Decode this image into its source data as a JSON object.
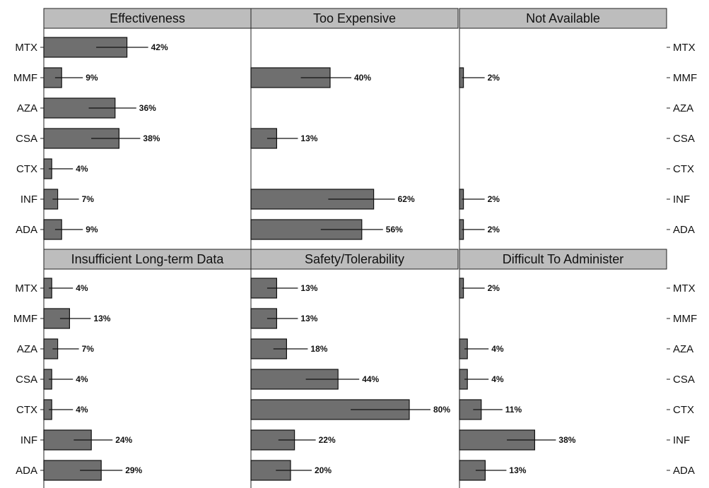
{
  "chart_data": {
    "type": "bar",
    "orientation": "horizontal",
    "categories": [
      "MTX",
      "MMF",
      "AZA",
      "CSA",
      "CTX",
      "INF",
      "ADA"
    ],
    "value_unit": "%",
    "xlim": [
      0,
      100
    ],
    "grid": false,
    "panels": [
      {
        "title": "Effectiveness",
        "values": [
          42,
          9,
          36,
          38,
          4,
          7,
          9
        ],
        "labels": [
          "42%",
          "9%",
          "36%",
          "38%",
          "4%",
          "7%",
          "9%"
        ]
      },
      {
        "title": "Too Expensive",
        "values": [
          0,
          40,
          0,
          13,
          0,
          62,
          56
        ],
        "labels": [
          "",
          "40%",
          "",
          "13%",
          "",
          "62%",
          "56%"
        ]
      },
      {
        "title": "Not Available",
        "values": [
          0,
          2,
          0,
          0,
          0,
          2,
          2
        ],
        "labels": [
          "",
          "2%",
          "",
          "",
          "",
          "2%",
          "2%"
        ]
      },
      {
        "title": "Insufficient Long-term Data",
        "values": [
          4,
          13,
          7,
          4,
          4,
          24,
          29
        ],
        "labels": [
          "4%",
          "13%",
          "7%",
          "4%",
          "4%",
          "24%",
          "29%"
        ]
      },
      {
        "title": "Safety/Tolerability",
        "values": [
          13,
          13,
          18,
          44,
          80,
          22,
          20
        ],
        "labels": [
          "13%",
          "13%",
          "18%",
          "44%",
          "80%",
          "22%",
          "20%"
        ]
      },
      {
        "title": "Difficult To Administer",
        "values": [
          2,
          0,
          4,
          4,
          11,
          38,
          13
        ],
        "labels": [
          "2%",
          "",
          "4%",
          "4%",
          "11%",
          "38%",
          "13%"
        ]
      }
    ]
  }
}
